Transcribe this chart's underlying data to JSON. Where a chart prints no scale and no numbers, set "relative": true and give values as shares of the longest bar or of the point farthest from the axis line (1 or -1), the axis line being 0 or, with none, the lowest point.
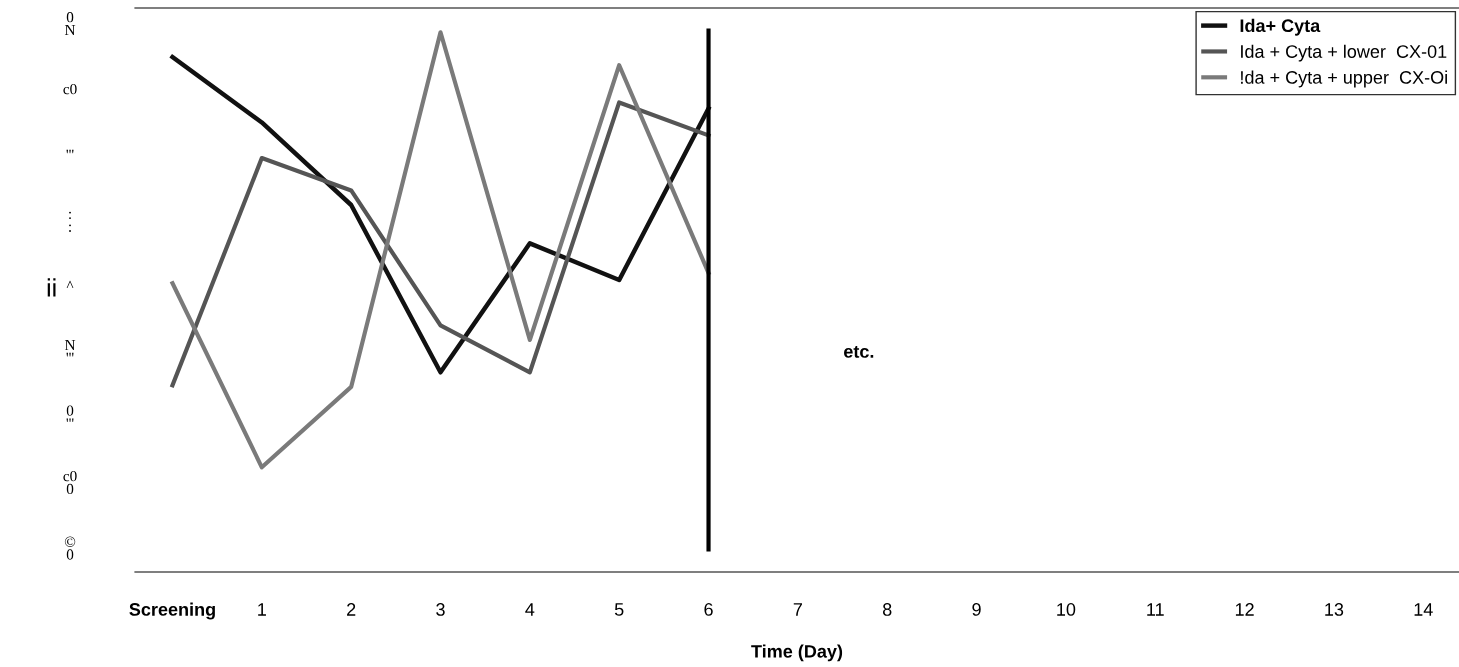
{
  "chart_data": {
    "type": "line",
    "relative": true,
    "xlabel": "Time (Day)",
    "ylabel": "ii",
    "categories": [
      "Screening",
      "1",
      "2",
      "3",
      "4",
      "5",
      "6",
      "7",
      "8",
      "9",
      "10",
      "11",
      "12",
      "13",
      "14"
    ],
    "series": [
      {
        "name": "Ida+ Cyta",
        "color": "#111111",
        "values": [
          0.954,
          0.833,
          0.68,
          0.37,
          0.609,
          0.541,
          0.859,
          null,
          null,
          null,
          null,
          null,
          null,
          null,
          null
        ]
      },
      {
        "name": "Ida + Cyta + lower  CX-01",
        "color": "#555555",
        "values": [
          0.346,
          0.767,
          0.707,
          0.457,
          0.37,
          0.87,
          0.809,
          null,
          null,
          null,
          null,
          null,
          null,
          null,
          null
        ]
      },
      {
        "name": "!da + Cyta + upper  CX-Oi",
        "color": "#7a7a7a",
        "values": [
          0.535,
          0.194,
          0.343,
          1.0,
          0.43,
          0.939,
          0.554,
          null,
          null,
          null,
          null,
          null,
          null,
          null,
          null
        ]
      }
    ],
    "ref_lines": [
      {
        "axis": "x",
        "value": "6",
        "color": "#000000"
      }
    ],
    "annotations": [
      "etc.",
      "0\nN",
      "c0",
      "'''",
      ":\n:",
      "^",
      "N\n'''",
      "0\n'''",
      "c0\n0",
      "©\n0"
    ],
    "legend": "top right",
    "grid": false,
    "marker": "none",
    "line_style": "solid"
  }
}
